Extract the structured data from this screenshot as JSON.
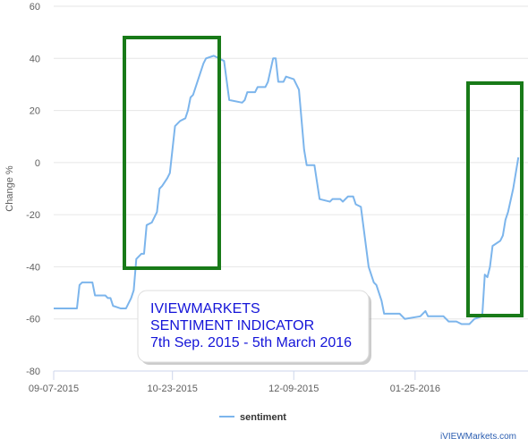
{
  "chart_data": {
    "type": "line",
    "y_label": "Change %",
    "x": [
      "09-07-2015",
      "09-16-2015",
      "09-17-2015",
      "09-18-2015",
      "09-22-2015",
      "09-23-2015",
      "09-27-2015",
      "09-28-2015",
      "09-29-2015",
      "09-30-2015",
      "10-03-2015",
      "10-05-2015",
      "10-07-2015",
      "10-08-2015",
      "10-09-2015",
      "10-11-2015",
      "10-12-2015",
      "10-13-2015",
      "10-15-2015",
      "10-17-2015",
      "10-18-2015",
      "10-19-2015",
      "10-21-2015",
      "10-22-2015",
      "10-24-2015",
      "10-26-2015",
      "10-28-2015",
      "10-29-2015",
      "10-30-2015",
      "10-31-2015",
      "11-02-2015",
      "11-04-2015",
      "11-05-2015",
      "11-08-2015",
      "11-10-2015",
      "11-12-2015",
      "11-14-2015",
      "11-19-2015",
      "11-20-2015",
      "11-21-2015",
      "11-24-2015",
      "11-25-2015",
      "11-28-2015",
      "11-29-2015",
      "12-01-2015",
      "12-02-2015",
      "12-03-2015",
      "12-05-2015",
      "12-06-2015",
      "12-09-2015",
      "12-11-2015",
      "12-13-2015",
      "12-14-2015",
      "12-17-2015",
      "12-19-2015",
      "12-23-2015",
      "12-24-2015",
      "12-27-2015",
      "12-28-2015",
      "12-30-2015",
      "01-01-2016",
      "01-02-2016",
      "01-04-2016",
      "01-07-2016",
      "01-09-2016",
      "01-10-2016",
      "01-12-2016",
      "01-13-2016",
      "01-19-2016",
      "01-21-2016",
      "01-27-2016",
      "01-29-2016",
      "01-30-2016",
      "02-05-2016",
      "02-07-2016",
      "02-10-2016",
      "02-12-2016",
      "02-15-2016",
      "02-17-2016",
      "02-20-2016",
      "02-21-2016",
      "02-22-2016",
      "02-23-2016",
      "02-24-2016",
      "02-27-2016",
      "02-28-2016",
      "02-29-2016",
      "03-01-2016",
      "03-03-2016",
      "03-05-2016"
    ],
    "series": [
      {
        "name": "sentiment",
        "color": "#7cb5ec",
        "values": [
          -56,
          -56,
          -47,
          -46,
          -46,
          -51,
          -51,
          -52,
          -52,
          -55,
          -56,
          -56,
          -52,
          -49,
          -37,
          -35,
          -35,
          -24,
          -23,
          -19,
          -10,
          -9,
          -6,
          -4,
          14,
          16,
          17,
          20,
          25,
          26,
          32,
          38,
          40,
          41,
          40,
          39,
          24,
          23,
          24,
          27,
          27,
          29,
          29,
          31,
          40,
          40,
          31,
          31,
          33,
          32,
          28,
          5,
          -1,
          -1,
          -14,
          -15,
          -14,
          -14,
          -15,
          -13,
          -13,
          -16,
          -17,
          -40,
          -46,
          -47,
          -53,
          -58,
          -58,
          -60,
          -59,
          -57,
          -59,
          -59,
          -61,
          -61,
          -62,
          -62,
          -60,
          -59,
          -43,
          -44,
          -40,
          -32,
          -30,
          -28,
          -22,
          -19,
          -10,
          2
        ]
      }
    ],
    "xlim": [
      "09-07-2015",
      "03-07-2016"
    ],
    "xticks": [
      "09-07-2015",
      "10-23-2015",
      "12-09-2015",
      "01-25-2016"
    ],
    "ylim": [
      -80,
      60
    ],
    "yticks": [
      -80,
      -60,
      -40,
      -20,
      0,
      20,
      40,
      60
    ],
    "grid": true,
    "annotation": [
      "IVIEWMARKETS",
      "SENTIMENT INDICATOR",
      "7th Sep. 2015 - 5th March 2016"
    ],
    "watermark": "iVIEWMarkets.com"
  }
}
